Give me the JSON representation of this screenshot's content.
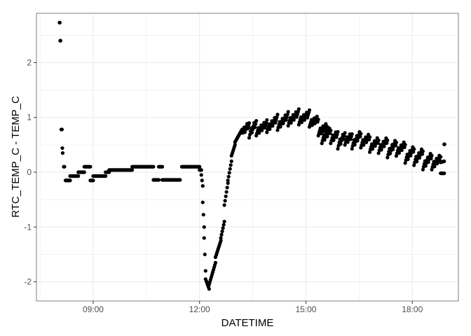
{
  "chart_data": {
    "type": "scatter",
    "xlabel": "DATETIME",
    "ylabel": "RTC_TEMP_C - TEMP_C",
    "x_unit": "time of day (hours)",
    "xlim": [
      7.4,
      19.3
    ],
    "ylim": [
      -2.35,
      2.9
    ],
    "x_ticks": [
      9,
      12,
      15,
      18
    ],
    "x_tick_labels": [
      "09:00",
      "12:00",
      "15:00",
      "18:00"
    ],
    "y_ticks": [
      -2,
      -1,
      0,
      1,
      2
    ],
    "y_tick_labels": [
      "-2",
      "-1",
      "0",
      "1",
      "2"
    ],
    "grid": true,
    "legend": "none",
    "colors": {
      "points": "#000000",
      "panel_border": "#7f7f7f",
      "grid": "#ebebeb"
    },
    "segments": [
      [
        8.05,
        2.73,
        8.06,
        2.73
      ],
      [
        8.07,
        2.4,
        8.08,
        2.4
      ],
      [
        8.1,
        0.78,
        8.12,
        0.78
      ],
      [
        8.13,
        0.44,
        8.14,
        0.35
      ],
      [
        8.17,
        0.1,
        8.19,
        0.1
      ],
      [
        8.22,
        -0.15,
        8.35,
        -0.15
      ],
      [
        8.35,
        -0.07,
        8.58,
        -0.07
      ],
      [
        8.58,
        0.0,
        8.75,
        0.0
      ],
      [
        8.75,
        0.1,
        8.92,
        0.1
      ],
      [
        8.92,
        -0.15,
        9.0,
        -0.15
      ],
      [
        9.0,
        -0.07,
        9.35,
        -0.07
      ],
      [
        9.35,
        0.0,
        9.45,
        0.0
      ],
      [
        9.45,
        0.04,
        10.1,
        0.04
      ],
      [
        10.1,
        0.1,
        10.7,
        0.1
      ],
      [
        10.7,
        -0.14,
        10.85,
        -0.14
      ],
      [
        10.85,
        0.1,
        10.95,
        0.1
      ],
      [
        10.95,
        -0.14,
        11.45,
        -0.14
      ],
      [
        11.5,
        0.1,
        12.0,
        0.1
      ],
      [
        12.0,
        0.04,
        12.05,
        0.04
      ],
      [
        12.05,
        -0.05,
        12.09,
        -0.25
      ],
      [
        12.09,
        -0.55,
        12.13,
        -1.0
      ],
      [
        12.13,
        -1.2,
        12.17,
        -1.8
      ],
      [
        12.17,
        -1.95,
        12.27,
        -2.13
      ],
      [
        12.27,
        -2.05,
        12.45,
        -1.65
      ],
      [
        12.45,
        -1.55,
        12.6,
        -1.25
      ],
      [
        12.6,
        -1.2,
        12.7,
        -0.9
      ],
      [
        12.7,
        -0.6,
        12.8,
        -0.2
      ],
      [
        12.8,
        -0.15,
        12.9,
        0.2
      ],
      [
        12.9,
        0.3,
        13.0,
        0.5
      ],
      [
        13.0,
        0.55,
        13.2,
        0.78
      ],
      [
        13.2,
        0.72,
        13.4,
        0.88
      ],
      [
        13.4,
        0.68,
        13.6,
        0.92
      ],
      [
        13.6,
        0.72,
        13.9,
        0.9
      ],
      [
        13.9,
        0.78,
        14.2,
        1.0
      ],
      [
        14.2,
        0.82,
        14.5,
        1.05
      ],
      [
        14.5,
        0.9,
        14.8,
        1.1
      ],
      [
        14.8,
        0.92,
        15.1,
        1.08
      ],
      [
        15.1,
        0.88,
        15.35,
        0.98
      ],
      [
        15.35,
        0.72,
        15.6,
        0.85
      ],
      [
        15.45,
        0.58,
        15.7,
        0.78
      ],
      [
        15.7,
        0.58,
        15.9,
        0.72
      ],
      [
        15.9,
        0.48,
        16.1,
        0.7
      ],
      [
        16.1,
        0.55,
        16.3,
        0.68
      ],
      [
        16.3,
        0.48,
        16.55,
        0.72
      ],
      [
        16.55,
        0.5,
        16.8,
        0.66
      ],
      [
        16.8,
        0.42,
        17.05,
        0.6
      ],
      [
        17.05,
        0.4,
        17.3,
        0.6
      ],
      [
        17.3,
        0.32,
        17.55,
        0.56
      ],
      [
        17.55,
        0.35,
        17.8,
        0.52
      ],
      [
        17.8,
        0.22,
        18.05,
        0.44
      ],
      [
        18.05,
        0.18,
        18.3,
        0.4
      ],
      [
        18.3,
        0.1,
        18.55,
        0.32
      ],
      [
        18.55,
        0.1,
        18.8,
        0.28
      ],
      [
        18.8,
        0.18,
        18.9,
        0.2
      ],
      [
        18.8,
        -0.02,
        18.9,
        -0.02
      ],
      [
        18.9,
        0.51,
        18.91,
        0.51
      ]
    ]
  }
}
